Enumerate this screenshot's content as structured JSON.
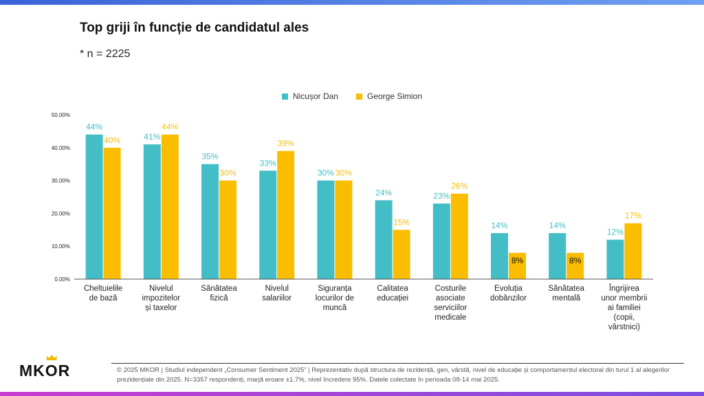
{
  "header": {
    "title": "Top griji în funcție de candidatul ales",
    "subtitle": "* n = 2225"
  },
  "footer": {
    "logo": "MKOR",
    "note": "© 2025 MKOR | Studiul independent „Consumer Sentiment 2025” | Reprezentativ după structura de rezidență, gen, vârstă, nivel de educație și comportamentul electoral din turul 1 al alegerilor prezidențiale din 2025. N=3357 respondenți, marjă eroare ±1.7%, nivel încredere 95%. Datele colectate în perioada 08-14 mai 2025."
  },
  "colors": {
    "series_1": "#43bec6",
    "series_2": "#fbbd00",
    "axis": "#555555",
    "text": "#222222"
  },
  "chart_data": {
    "type": "bar",
    "title": "",
    "xlabel": "",
    "ylabel": "",
    "ylim": [
      0,
      50
    ],
    "yticks": [
      "0.00%",
      "10.00%",
      "20.00%",
      "30.00%",
      "40.00%",
      "50.00%"
    ],
    "grid": false,
    "legend": "top-center",
    "categories": [
      "Cheltuielile de bază",
      "Nivelul impozitelor și taxelor",
      "Sănătatea fizică",
      "Nivelul salariilor",
      "Siguranța locurilor de muncă",
      "Calitatea educației",
      "Costurile asociate serviciilor medicale",
      "Evoluția dobânzilor",
      "Sănătatea mentală",
      "Îngrijirea unor membrii ai familiei (copii, vârstnici)"
    ],
    "series": [
      {
        "name": "Nicușor Dan",
        "values": [
          44,
          41,
          35,
          33,
          30,
          24,
          23,
          14,
          14,
          12
        ],
        "labels": [
          "44%",
          "41%",
          "35%",
          "33%",
          "30%",
          "24%",
          "23%",
          "14%",
          "14%",
          "12%"
        ]
      },
      {
        "name": "George Simion",
        "values": [
          40,
          44,
          30,
          39,
          30,
          15,
          26,
          8,
          8,
          17
        ],
        "labels": [
          "40%",
          "44%",
          "30%",
          "39%",
          "30%",
          "15%",
          "26%",
          "8%",
          "8%",
          "17%"
        ]
      }
    ]
  }
}
